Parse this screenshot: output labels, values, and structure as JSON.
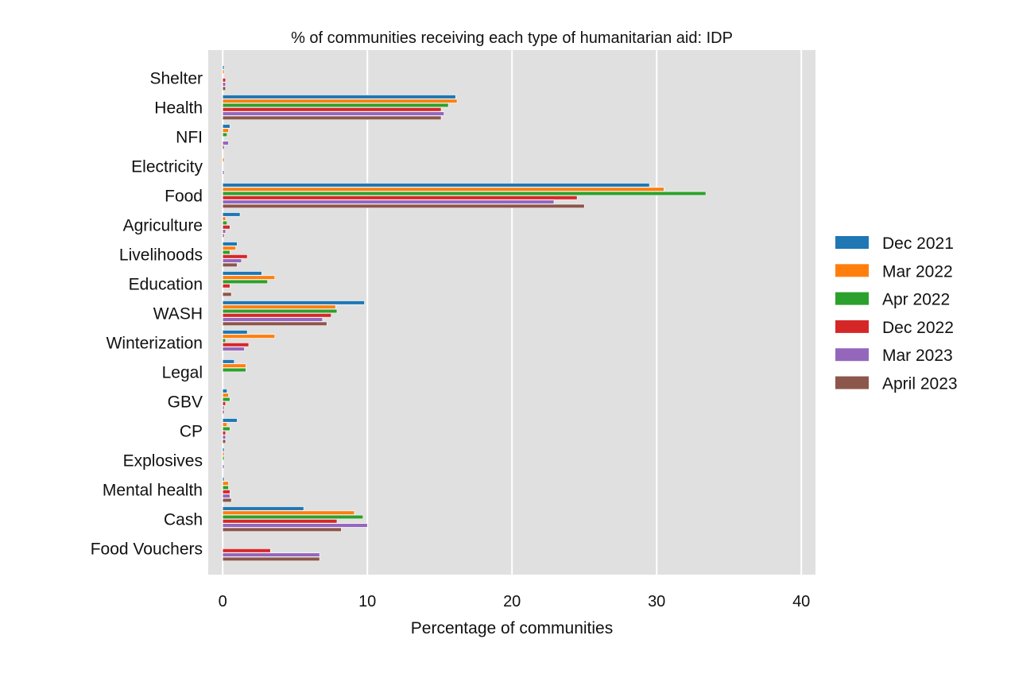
{
  "chart_data": {
    "type": "bar",
    "orientation": "horizontal",
    "title": "% of communities receiving each type of humanitarian aid: IDP",
    "xlabel": "Percentage of communities",
    "ylabel": "",
    "xlim": [
      -1,
      41
    ],
    "xticks": [
      0,
      10,
      20,
      30,
      40
    ],
    "grid": true,
    "legend_position": "right",
    "categories": [
      "Shelter",
      "Health",
      "NFI",
      "Electricity",
      "Food",
      "Agriculture",
      "Livelihoods",
      "Education",
      "WASH",
      "Winterization",
      "Legal",
      "GBV",
      "CP",
      "Explosives",
      "Mental health",
      "Cash",
      "Food Vouchers"
    ],
    "series": [
      {
        "name": "Dec 2021",
        "color": "#1f77b4",
        "values": [
          0.1,
          16.1,
          0.5,
          0.0,
          29.5,
          1.2,
          1.0,
          2.7,
          9.8,
          1.7,
          0.8,
          0.3,
          1.0,
          0.1,
          0.1,
          5.6,
          0.0
        ]
      },
      {
        "name": "Mar 2022",
        "color": "#ff7f0e",
        "values": [
          0.1,
          16.2,
          0.4,
          0.1,
          30.5,
          0.2,
          0.9,
          3.6,
          7.8,
          3.6,
          1.6,
          0.4,
          0.3,
          0.1,
          0.4,
          9.1,
          0.0
        ]
      },
      {
        "name": "Apr 2022",
        "color": "#2ca02c",
        "values": [
          0.0,
          15.6,
          0.3,
          0.0,
          33.4,
          0.3,
          0.5,
          3.1,
          7.9,
          0.2,
          1.6,
          0.5,
          0.5,
          0.1,
          0.4,
          9.7,
          0.0
        ]
      },
      {
        "name": "Dec 2022",
        "color": "#d62728",
        "values": [
          0.2,
          15.1,
          0.0,
          0.0,
          24.5,
          0.5,
          1.7,
          0.5,
          7.5,
          1.8,
          0.0,
          0.2,
          0.2,
          0.0,
          0.5,
          7.9,
          3.3
        ]
      },
      {
        "name": "Mar 2023",
        "color": "#9467bd",
        "values": [
          0.2,
          15.3,
          0.4,
          0.1,
          22.9,
          0.2,
          1.3,
          0.0,
          6.9,
          1.5,
          0.0,
          0.1,
          0.2,
          0.1,
          0.5,
          10.0,
          6.7
        ]
      },
      {
        "name": "April 2023",
        "color": "#8c564b",
        "values": [
          0.2,
          15.1,
          0.1,
          0.0,
          25.0,
          0.1,
          1.0,
          0.6,
          7.2,
          0.0,
          0.0,
          0.1,
          0.2,
          0.0,
          0.6,
          8.2,
          6.7
        ]
      }
    ],
    "colors": {
      "plot_background": "#e0e0e0",
      "grid": "#ffffff"
    }
  }
}
